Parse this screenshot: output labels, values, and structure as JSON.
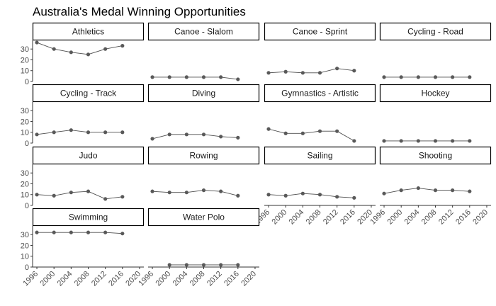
{
  "chart_data": {
    "type": "line",
    "title": "Australia's Medal Winning Opportunities",
    "xlabel": "",
    "ylabel": "",
    "x_ticks": [
      1996,
      2000,
      2004,
      2008,
      2012,
      2016,
      2020
    ],
    "xlim": [
      1995,
      2021
    ],
    "y_ticks": [
      0,
      10,
      20,
      30
    ],
    "ylim": [
      0,
      38
    ],
    "panel_layout": "facet grid, 4 columns, shared x and y axes",
    "colors": {
      "line": "#4d4d4d",
      "point": "#595959",
      "strip_border": "#000000",
      "axis": "#333333"
    },
    "panels": [
      {
        "name": "Athletics",
        "x": [
          1996,
          2000,
          2004,
          2008,
          2012,
          2016
        ],
        "y": [
          36,
          30,
          27,
          25,
          30,
          33
        ]
      },
      {
        "name": "Canoe - Slalom",
        "x": [
          1996,
          2000,
          2004,
          2008,
          2012,
          2016
        ],
        "y": [
          4,
          4,
          4,
          4,
          4,
          2
        ]
      },
      {
        "name": "Canoe - Sprint",
        "x": [
          1996,
          2000,
          2004,
          2008,
          2012,
          2016
        ],
        "y": [
          8,
          9,
          8,
          8,
          12,
          10
        ]
      },
      {
        "name": "Cycling - Road",
        "x": [
          1996,
          2000,
          2004,
          2008,
          2012,
          2016
        ],
        "y": [
          4,
          4,
          4,
          4,
          4,
          4
        ]
      },
      {
        "name": "Cycling - Track",
        "x": [
          1996,
          2000,
          2004,
          2008,
          2012,
          2016
        ],
        "y": [
          8,
          10,
          12,
          10,
          10,
          10
        ]
      },
      {
        "name": "Diving",
        "x": [
          1996,
          2000,
          2004,
          2008,
          2012,
          2016
        ],
        "y": [
          4,
          8,
          8,
          8,
          6,
          5
        ]
      },
      {
        "name": "Gymnastics - Artistic",
        "x": [
          1996,
          2000,
          2004,
          2008,
          2012,
          2016
        ],
        "y": [
          13,
          9,
          9,
          11,
          11,
          2
        ]
      },
      {
        "name": "Hockey",
        "x": [
          1996,
          2000,
          2004,
          2008,
          2012,
          2016
        ],
        "y": [
          2,
          2,
          2,
          2,
          2,
          2
        ]
      },
      {
        "name": "Judo",
        "x": [
          1996,
          2000,
          2004,
          2008,
          2012,
          2016
        ],
        "y": [
          10,
          9,
          12,
          13,
          6,
          8
        ]
      },
      {
        "name": "Rowing",
        "x": [
          1996,
          2000,
          2004,
          2008,
          2012,
          2016
        ],
        "y": [
          13,
          12,
          12,
          14,
          13,
          9
        ]
      },
      {
        "name": "Sailing",
        "x": [
          1996,
          2000,
          2004,
          2008,
          2012,
          2016
        ],
        "y": [
          10,
          9,
          11,
          10,
          8,
          7
        ]
      },
      {
        "name": "Shooting",
        "x": [
          1996,
          2000,
          2004,
          2008,
          2012,
          2016
        ],
        "y": [
          11,
          14,
          16,
          14,
          14,
          13
        ]
      },
      {
        "name": "Swimming",
        "x": [
          1996,
          2000,
          2004,
          2008,
          2012,
          2016
        ],
        "y": [
          32,
          32,
          32,
          32,
          32,
          31
        ]
      },
      {
        "name": "Water Polo",
        "x": [
          2000,
          2004,
          2008,
          2012,
          2016
        ],
        "y": [
          2,
          2,
          2,
          2,
          2
        ]
      }
    ]
  }
}
